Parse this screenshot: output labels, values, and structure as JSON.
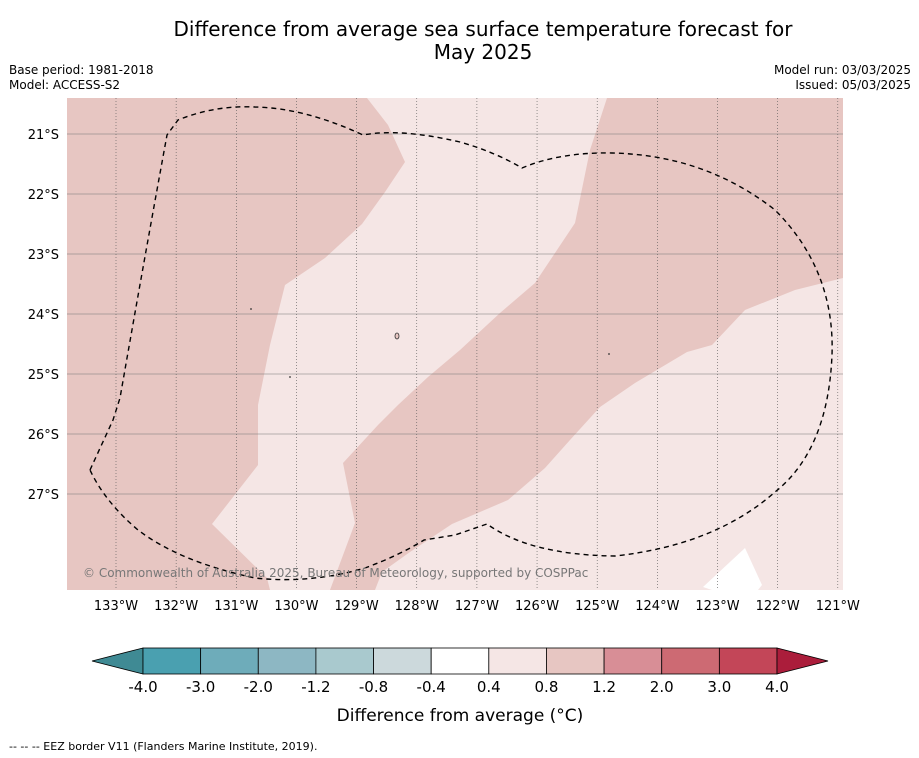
{
  "title_line1": "Difference from average sea surface temperature forecast for",
  "title_line2": "May 2025",
  "base_period": "Base period: 1981-2018",
  "model": "Model: ACCESS-S2",
  "model_run": "Model run: 03/03/2025",
  "issued": "Issued: 05/03/2025",
  "copyright": "© Commonwealth of Australia 2025, Bureau of Meteorology, supported by COSPPac",
  "footnote": "--  --  -- EEZ border V11 (Flanders Marine Institute, 2019).",
  "lat_labels": [
    "21°S",
    "22°S",
    "23°S",
    "24°S",
    "25°S",
    "26°S",
    "27°S"
  ],
  "lon_labels": [
    "133°W",
    "132°W",
    "131°W",
    "130°W",
    "129°W",
    "128°W",
    "127°W",
    "126°W",
    "125°W",
    "124°W",
    "123°W",
    "122°W",
    "121°W"
  ],
  "colorbar": {
    "label": "Difference from average (°C)",
    "ticks": [
      "-4.0",
      "-3.0",
      "-2.0",
      "-1.2",
      "-0.8",
      "-0.4",
      "0.4",
      "0.8",
      "1.2",
      "2.0",
      "3.0",
      "4.0"
    ],
    "colors": [
      "#3f8a94",
      "#4aa0b0",
      "#6eacba",
      "#8db7c3",
      "#a9c9ce",
      "#ccd9dc",
      "#ffffff",
      "#f5e6e5",
      "#e7c6c2",
      "#d88e96",
      "#cd6a73",
      "#c34658",
      "#ab1d3b"
    ]
  },
  "map_colors": {
    "band_0_4_0_8": "#f5e6e5",
    "band_0_8_1_2": "#e7c6c2",
    "band_neutral": "#ffffff"
  }
}
